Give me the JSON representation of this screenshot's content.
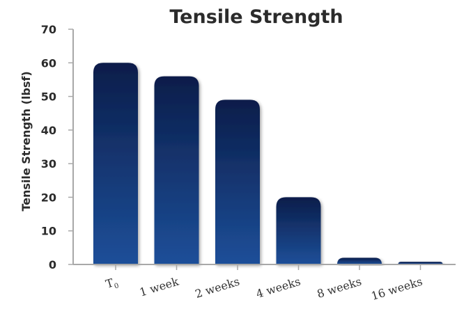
{
  "chart_data": {
    "type": "bar",
    "title": "Tensile Strength",
    "ylabel": "Tensile Strength (lbsf)",
    "xlabel": "",
    "categories": [
      "T0",
      "1 week",
      "2 weeks",
      "4 weeks",
      "8 weeks",
      "16 weeks"
    ],
    "values": [
      60,
      56,
      49,
      20,
      2,
      0.8
    ],
    "ylim": [
      0,
      70
    ],
    "yticks": [
      0,
      10,
      20,
      30,
      40,
      50,
      60,
      70
    ],
    "grid": false,
    "legend": "none",
    "colors": {
      "bar_top": "#0b1d4a",
      "bar_bottom": "#1d4f99",
      "axis": "#a8a8a8",
      "text": "#2b2b2b"
    }
  }
}
